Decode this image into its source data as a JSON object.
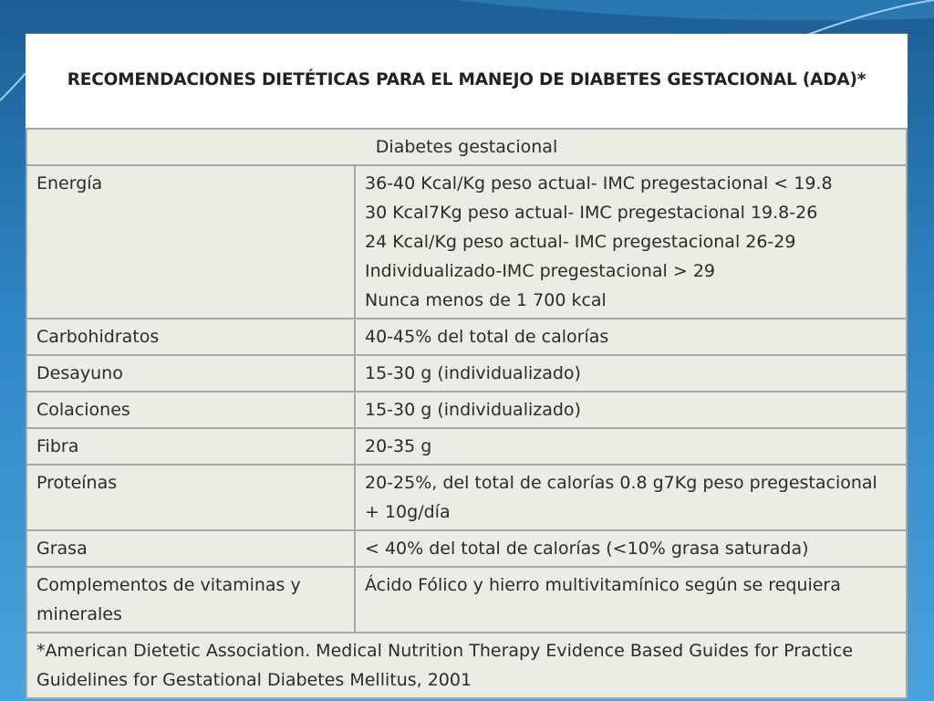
{
  "title": "RECOMENDACIONES DIETÉTICAS PARA EL MANEJO DE DIABETES GESTACIONAL (ADA)*",
  "table": {
    "header": "Diabetes gestacional",
    "rows": [
      {
        "label": "Energía",
        "value": [
          "36-40 Kcal/Kg peso actual- IMC pregestacional < 19.8",
          "30 Kcal7Kg peso actual- IMC pregestacional 19.8-26",
          "24 Kcal/Kg peso actual- IMC pregestacional 26-29",
          "Individualizado-IMC pregestacional > 29",
          "Nunca menos de 1 700 kcal"
        ]
      },
      {
        "label": "Carbohidratos",
        "value": [
          "40-45% del total de calorías"
        ]
      },
      {
        "label": "Desayuno",
        "value": [
          "15-30 g (individualizado)"
        ]
      },
      {
        "label": "Colaciones",
        "value": [
          "15-30 g (individualizado)"
        ]
      },
      {
        "label": "Fibra",
        "value": [
          "20-35 g"
        ]
      },
      {
        "label": "Proteínas",
        "value": [
          "20-25%, del total de calorías 0.8 g7Kg peso pregestacional",
          "+ 10g/día"
        ]
      },
      {
        "label": "Grasa",
        "value": [
          "< 40% del total de calorías (<10% grasa saturada)"
        ]
      },
      {
        "label": "Complementos de vitaminas y minerales",
        "value": [
          "Ácido Fólico y hierro multivitamínico según se requiera"
        ]
      }
    ],
    "footnote": "*American Dietetic Association. Medical Nutrition Therapy Evidence Based Guides for Practice Guidelines for Gestational Diabetes Mellitus, 2001"
  }
}
